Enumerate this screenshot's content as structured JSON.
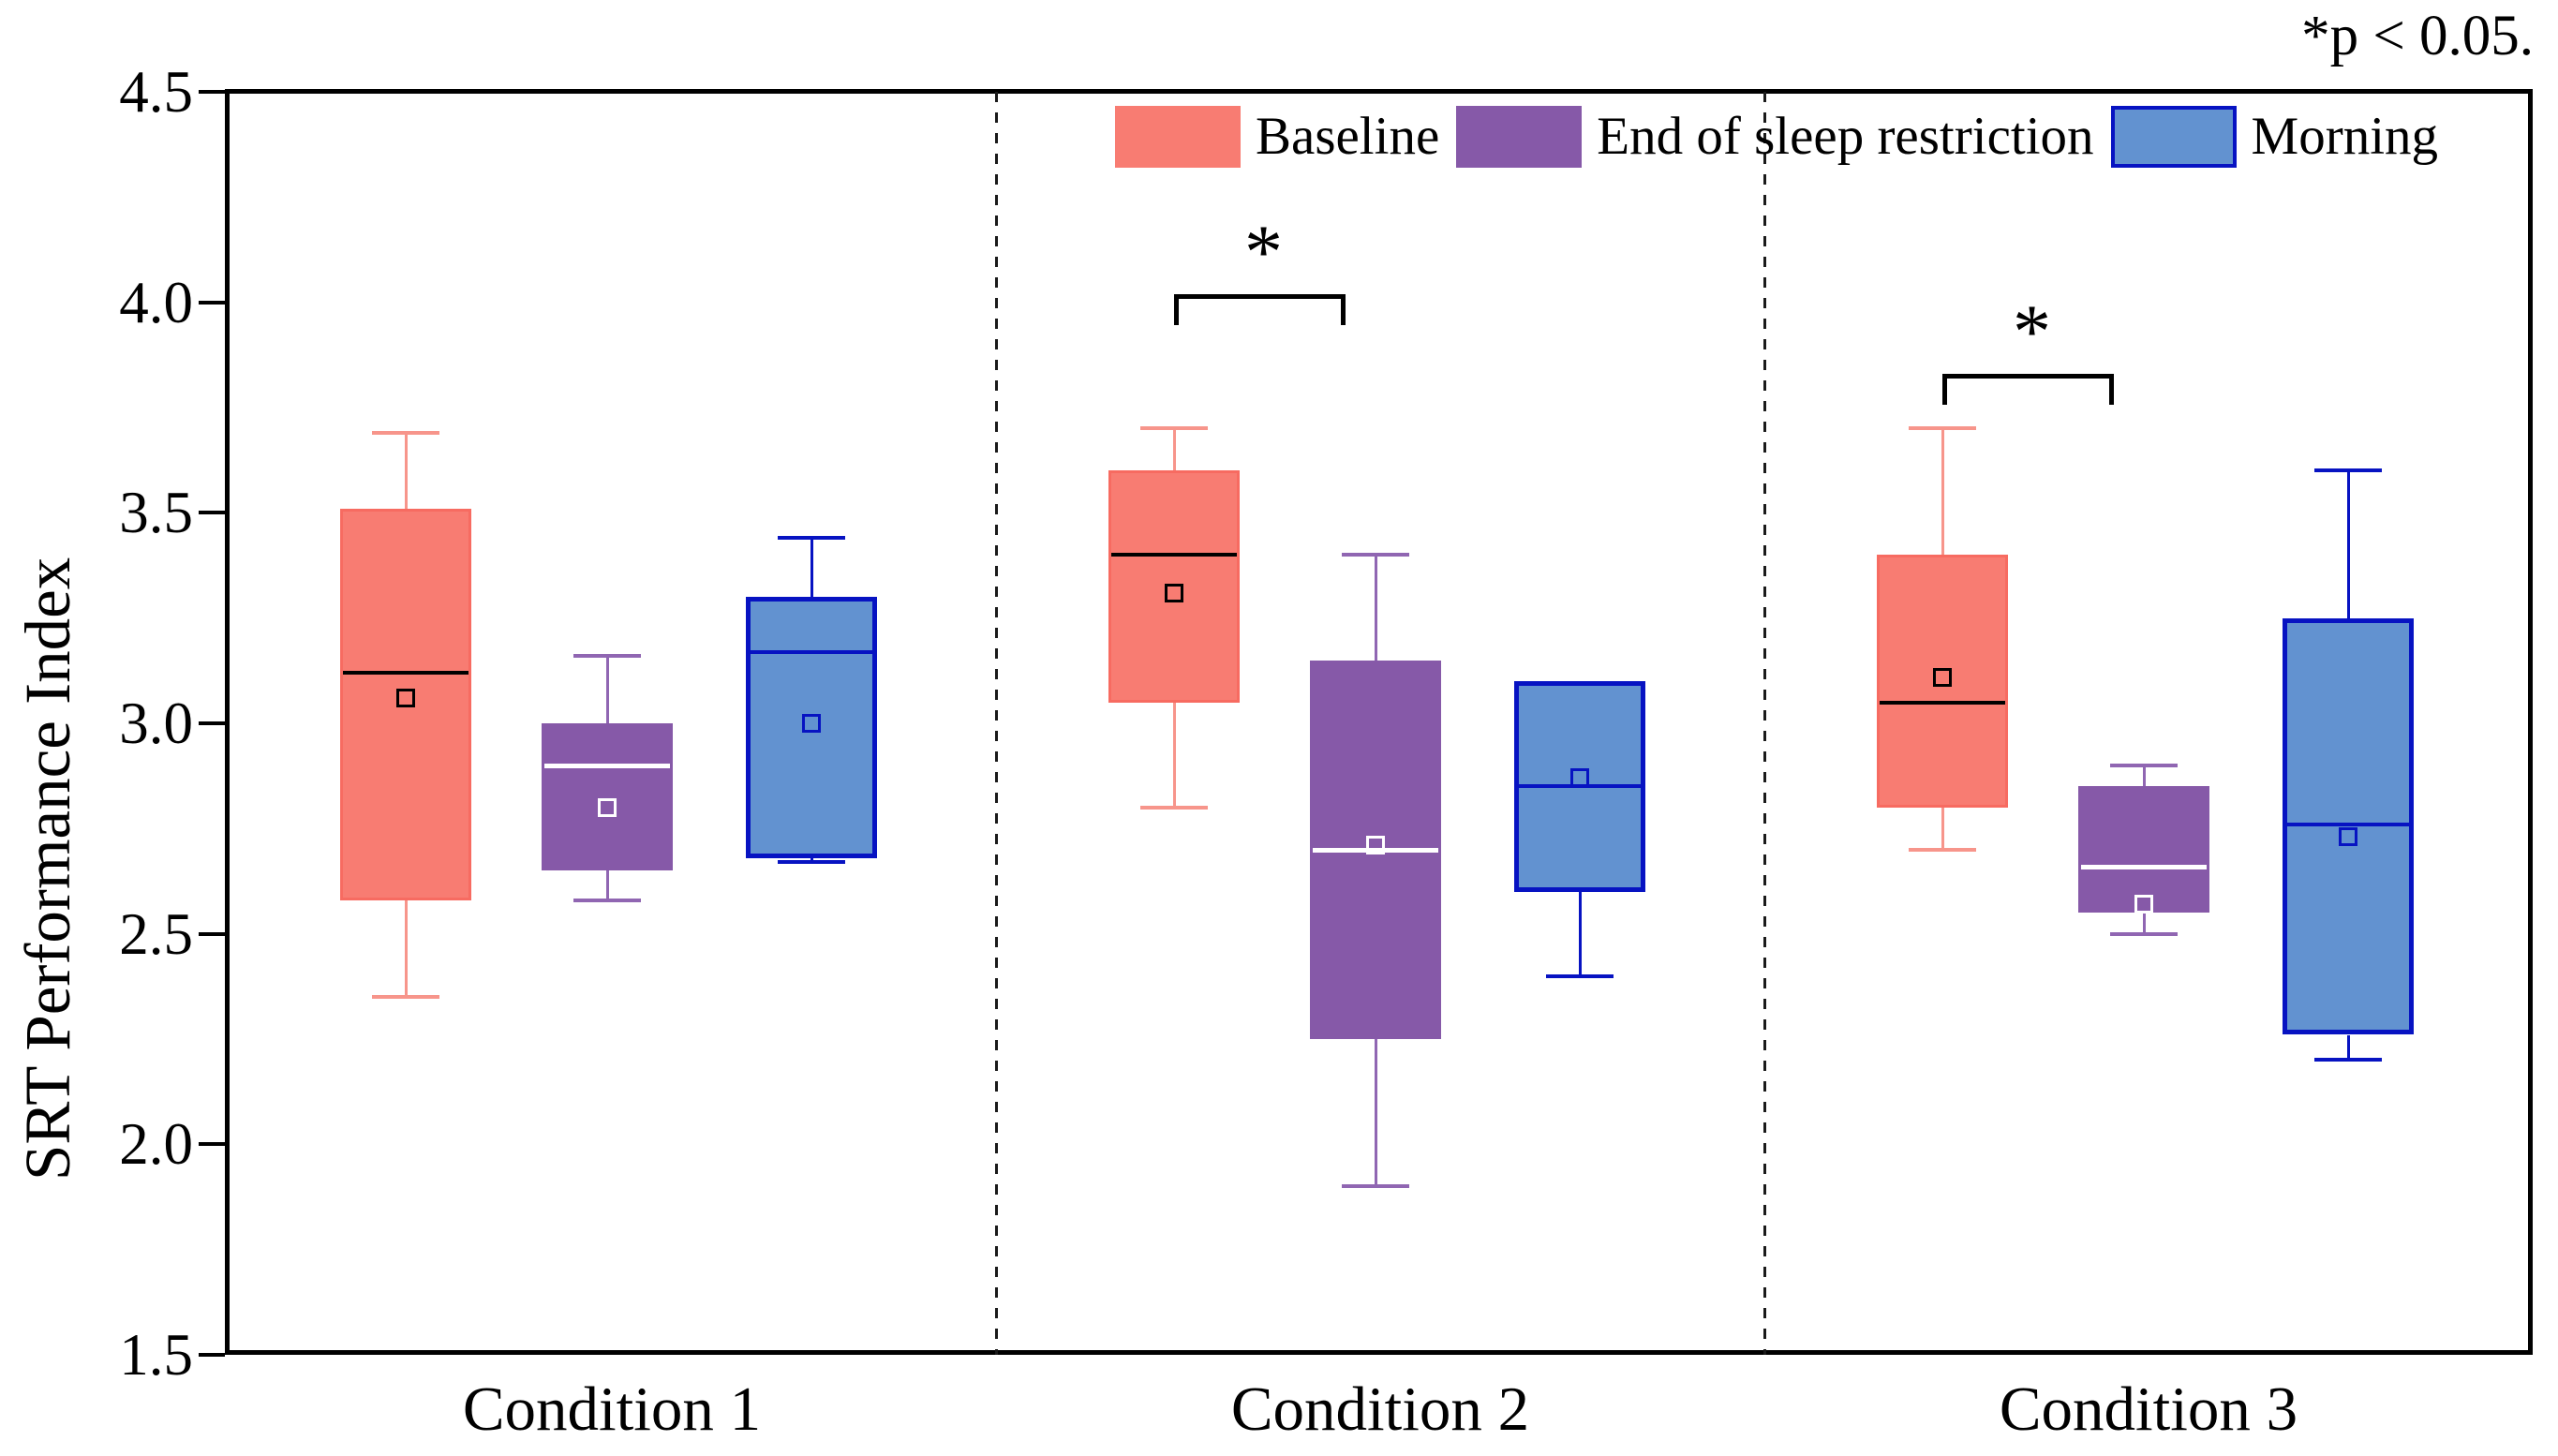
{
  "chart_data": {
    "type": "box",
    "title": "",
    "ylabel": "SRT Performance Index",
    "xlabel": "",
    "ylim": [
      1.5,
      4.5
    ],
    "ytick_step": 0.5,
    "y_ticks": [
      "4.5",
      "4.0",
      "3.5",
      "3.0",
      "2.5",
      "2.0",
      "1.5"
    ],
    "y_tick_values": [
      4.5,
      4.0,
      3.5,
      3.0,
      2.5,
      2.0,
      1.5
    ],
    "grid": "off",
    "legend_position": "top-inside",
    "annotation": "*p < 0.05.",
    "categories": [
      "Condition 1",
      "Condition 2",
      "Condition 3"
    ],
    "series": [
      {
        "name": "Baseline",
        "fill": "#f87c72",
        "stroke": "#f76b61",
        "whisker_color": "#f7958b",
        "median_color": "#000000",
        "mean_marker_color": "#000000",
        "boxes": [
          {
            "low": 2.35,
            "q1": 2.58,
            "median": 3.12,
            "mean": 3.06,
            "q3": 3.51,
            "high": 3.69
          },
          {
            "low": 2.8,
            "q1": 3.05,
            "median": 3.4,
            "mean": 3.31,
            "q3": 3.6,
            "high": 3.7
          },
          {
            "low": 2.7,
            "q1": 2.8,
            "median": 3.05,
            "mean": 3.11,
            "q3": 3.4,
            "high": 3.7
          }
        ]
      },
      {
        "name": "End of sleep restriction",
        "fill": "#8659a8",
        "stroke": "#8659a8",
        "whisker_color": "#9066b2",
        "median_color": "#ffffff",
        "mean_marker_color": "#ffffff",
        "boxes": [
          {
            "low": 2.58,
            "q1": 2.65,
            "median": 2.9,
            "mean": 2.8,
            "q3": 3.0,
            "high": 3.16
          },
          {
            "low": 1.9,
            "q1": 2.25,
            "median": 2.7,
            "mean": 2.71,
            "q3": 3.15,
            "high": 3.4
          },
          {
            "low": 2.5,
            "q1": 2.55,
            "median": 2.66,
            "mean": 2.57,
            "q3": 2.85,
            "high": 2.9
          }
        ]
      },
      {
        "name": "Morning",
        "fill": "#6292d0",
        "stroke": "#0713c2",
        "whisker_color": "#0713c2",
        "median_color": "#0713c2",
        "mean_marker_color": "#0713c2",
        "boxes": [
          {
            "low": 2.67,
            "q1": 2.68,
            "median": 3.17,
            "mean": 3.0,
            "q3": 3.3,
            "high": 3.44
          },
          {
            "low": 2.4,
            "q1": 2.6,
            "median": 2.85,
            "mean": 2.87,
            "q3": 3.1,
            "high": 3.1
          },
          {
            "low": 2.2,
            "q1": 2.26,
            "median": 2.76,
            "mean": 2.73,
            "q3": 3.25,
            "high": 3.6
          }
        ]
      }
    ],
    "significance": [
      {
        "category_index": 1,
        "between": [
          "Baseline",
          "End of sleep restriction"
        ],
        "label": "*",
        "bar_y": 4.02
      },
      {
        "category_index": 2,
        "between": [
          "Baseline",
          "End of sleep restriction"
        ],
        "label": "*",
        "bar_y": 3.83
      }
    ]
  }
}
